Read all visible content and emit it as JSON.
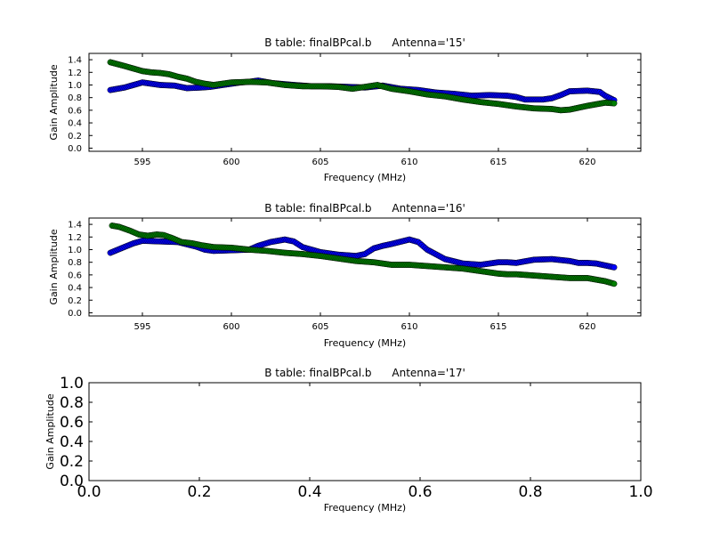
{
  "chart_data": [
    {
      "type": "scatter",
      "title": "B table: finalBPcal.b      Antenna='15'",
      "xlabel": "Frequency (MHz)",
      "ylabel": "Gain Amplitude",
      "xlim": [
        592,
        623
      ],
      "ylim": [
        -0.05,
        1.5
      ],
      "xticks": [
        595,
        600,
        605,
        610,
        615,
        620
      ],
      "xtick_labels": [
        "595",
        "600",
        "605",
        "610",
        "615",
        "620"
      ],
      "yticks": [
        0.0,
        0.2,
        0.4,
        0.6,
        0.8,
        1.0,
        1.2,
        1.4
      ],
      "ytick_labels": [
        "0.0",
        "0.2",
        "0.4",
        "0.6",
        "0.8",
        "1.0",
        "1.2",
        "1.4"
      ],
      "tick_style": "small",
      "series": [
        {
          "color": "#0000ff",
          "x": [
            593.2,
            594.0,
            595.0,
            596.0,
            596.8,
            597.5,
            598.3,
            598.8,
            599.5,
            600.5,
            601.0,
            601.5,
            602.3,
            603.5,
            604.5,
            605.5,
            606.5,
            607.5,
            608.5,
            609.5,
            610.5,
            611.5,
            612.5,
            613.5,
            614.5,
            615.5,
            616.0,
            616.5,
            617.5,
            618.0,
            618.5,
            619.0,
            620.0,
            620.7,
            621.0,
            621.5
          ],
          "y": [
            0.92,
            0.96,
            1.04,
            1.0,
            0.99,
            0.95,
            0.96,
            0.97,
            1.0,
            1.04,
            1.05,
            1.07,
            1.03,
            1.0,
            0.98,
            0.98,
            0.97,
            0.96,
            0.99,
            0.94,
            0.92,
            0.88,
            0.86,
            0.83,
            0.84,
            0.83,
            0.81,
            0.77,
            0.77,
            0.79,
            0.84,
            0.9,
            0.91,
            0.89,
            0.83,
            0.76
          ]
        },
        {
          "color": "#007f00",
          "x": [
            593.2,
            593.6,
            594.0,
            594.5,
            595.0,
            595.5,
            596.0,
            596.5,
            597.0,
            597.5,
            598.0,
            598.5,
            599.0,
            600.0,
            601.0,
            602.0,
            603.0,
            604.0,
            605.0,
            606.0,
            606.8,
            607.5,
            608.2,
            609.0,
            610.0,
            611.0,
            612.0,
            613.0,
            614.0,
            615.0,
            615.5,
            616.0,
            617.0,
            618.0,
            618.5,
            619.0,
            620.0,
            621.0,
            621.5
          ],
          "y": [
            1.36,
            1.33,
            1.3,
            1.26,
            1.22,
            1.2,
            1.19,
            1.17,
            1.13,
            1.1,
            1.05,
            1.02,
            1.0,
            1.04,
            1.05,
            1.04,
            1.0,
            0.98,
            0.98,
            0.97,
            0.94,
            0.97,
            1.0,
            0.94,
            0.9,
            0.85,
            0.82,
            0.77,
            0.73,
            0.7,
            0.68,
            0.66,
            0.63,
            0.62,
            0.6,
            0.61,
            0.67,
            0.72,
            0.71
          ]
        }
      ]
    },
    {
      "type": "scatter",
      "title": "B table: finalBPcal.b      Antenna='16'",
      "xlabel": "Frequency (MHz)",
      "ylabel": "Gain Amplitude",
      "xlim": [
        592,
        623
      ],
      "ylim": [
        -0.05,
        1.5
      ],
      "xticks": [
        595,
        600,
        605,
        610,
        615,
        620
      ],
      "xtick_labels": [
        "595",
        "600",
        "605",
        "610",
        "615",
        "620"
      ],
      "yticks": [
        0.0,
        0.2,
        0.4,
        0.6,
        0.8,
        1.0,
        1.2,
        1.4
      ],
      "ytick_labels": [
        "0.0",
        "0.2",
        "0.4",
        "0.6",
        "0.8",
        "1.0",
        "1.2",
        "1.4"
      ],
      "tick_style": "small",
      "series": [
        {
          "color": "#0000ff",
          "x": [
            593.2,
            593.8,
            594.5,
            595.0,
            596.0,
            597.0,
            598.0,
            598.5,
            599.0,
            600.0,
            601.0,
            601.5,
            602.2,
            603.0,
            603.5,
            604.0,
            605.0,
            606.0,
            607.0,
            607.5,
            608.0,
            608.5,
            609.0,
            610.0,
            610.5,
            611.0,
            612.0,
            613.0,
            614.0,
            615.0,
            615.5,
            616.0,
            617.0,
            618.0,
            619.0,
            619.5,
            620.0,
            620.5,
            621.0,
            621.5
          ],
          "y": [
            0.95,
            1.02,
            1.1,
            1.14,
            1.13,
            1.12,
            1.05,
            1.0,
            0.98,
            0.99,
            1.0,
            1.06,
            1.12,
            1.16,
            1.13,
            1.04,
            0.96,
            0.92,
            0.9,
            0.93,
            1.02,
            1.06,
            1.09,
            1.16,
            1.12,
            1.0,
            0.85,
            0.78,
            0.76,
            0.8,
            0.8,
            0.79,
            0.84,
            0.85,
            0.82,
            0.79,
            0.79,
            0.78,
            0.75,
            0.72
          ]
        },
        {
          "color": "#007f00",
          "x": [
            593.3,
            593.7,
            594.3,
            594.8,
            595.3,
            595.8,
            596.2,
            596.7,
            597.2,
            597.8,
            598.3,
            599.0,
            600.0,
            601.0,
            602.0,
            603.0,
            604.0,
            605.0,
            606.0,
            607.0,
            608.0,
            609.0,
            610.0,
            611.0,
            612.0,
            613.0,
            614.0,
            615.0,
            615.5,
            616.0,
            617.0,
            618.0,
            619.0,
            620.0,
            621.0,
            621.5
          ],
          "y": [
            1.38,
            1.36,
            1.3,
            1.24,
            1.22,
            1.24,
            1.23,
            1.18,
            1.12,
            1.1,
            1.07,
            1.04,
            1.03,
            1.0,
            0.98,
            0.95,
            0.93,
            0.9,
            0.86,
            0.82,
            0.8,
            0.76,
            0.76,
            0.74,
            0.72,
            0.7,
            0.66,
            0.62,
            0.61,
            0.61,
            0.59,
            0.57,
            0.55,
            0.55,
            0.5,
            0.46
          ]
        }
      ]
    },
    {
      "type": "scatter",
      "title": "B table: finalBPcal.b      Antenna='17'",
      "xlabel": "Frequency (MHz)",
      "ylabel": "Gain Amplitude",
      "xlim": [
        0.0,
        1.0
      ],
      "ylim": [
        0.0,
        1.0
      ],
      "xticks": [
        0.0,
        0.2,
        0.4,
        0.6,
        0.8,
        1.0
      ],
      "xtick_labels": [
        "0.0",
        "0.2",
        "0.4",
        "0.6",
        "0.8",
        "1.0"
      ],
      "yticks": [
        0.0,
        0.2,
        0.4,
        0.6,
        0.8,
        1.0
      ],
      "ytick_labels": [
        "0.0",
        "0.2",
        "0.4",
        "0.6",
        "0.8",
        "1.0"
      ],
      "tick_style": "large",
      "series": []
    }
  ]
}
